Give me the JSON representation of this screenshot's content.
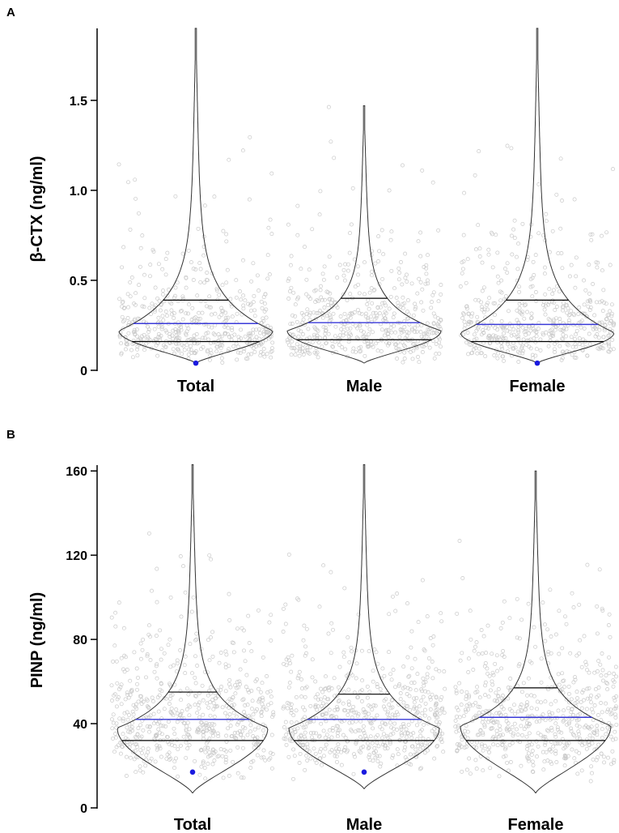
{
  "chart_data": [
    {
      "panel": "A",
      "type": "violin",
      "ylabel": "β-CTX (ng/ml)",
      "ylim": [
        0,
        1.9
      ],
      "yticks": [
        0,
        0.5,
        1.0,
        1.5
      ],
      "ytick_labels": [
        "0",
        "0.5",
        "1.0",
        "1.5"
      ],
      "categories": [
        "Total",
        "Male",
        "Female"
      ],
      "series": [
        {
          "name": "Total",
          "min": 0.04,
          "max": 1.9,
          "q1": 0.16,
          "median": 0.26,
          "q3": 0.39,
          "mode": 0.22,
          "low_marker": 0.04
        },
        {
          "name": "Male",
          "min": 0.04,
          "max": 1.47,
          "q1": 0.17,
          "median": 0.265,
          "q3": 0.4,
          "mode": 0.22,
          "low_marker": null
        },
        {
          "name": "Female",
          "min": 0.04,
          "max": 1.9,
          "q1": 0.16,
          "median": 0.255,
          "q3": 0.39,
          "mode": 0.21,
          "low_marker": 0.04
        }
      ]
    },
    {
      "panel": "B",
      "type": "violin",
      "ylabel": "PINP (ng/ml)",
      "ylim": [
        0,
        162
      ],
      "yticks": [
        0,
        40,
        80,
        120,
        160
      ],
      "ytick_labels": [
        "0",
        "40",
        "80",
        "120",
        "160"
      ],
      "categories": [
        "Total",
        "Male",
        "Female"
      ],
      "series": [
        {
          "name": "Total",
          "min": 7,
          "max": 163,
          "q1": 32,
          "median": 42,
          "q3": 55,
          "mode": 38,
          "low_marker": 17
        },
        {
          "name": "Male",
          "min": 9,
          "max": 163,
          "q1": 32,
          "median": 42,
          "q3": 54,
          "mode": 38,
          "low_marker": 17
        },
        {
          "name": "Female",
          "min": 7,
          "max": 160,
          "q1": 32,
          "median": 43,
          "q3": 57,
          "mode": 39,
          "low_marker": null
        }
      ]
    }
  ],
  "colors": {
    "mean_line": "#3a3ad8",
    "marker": "#1a1adf",
    "jitter": "#c9c9c9"
  }
}
